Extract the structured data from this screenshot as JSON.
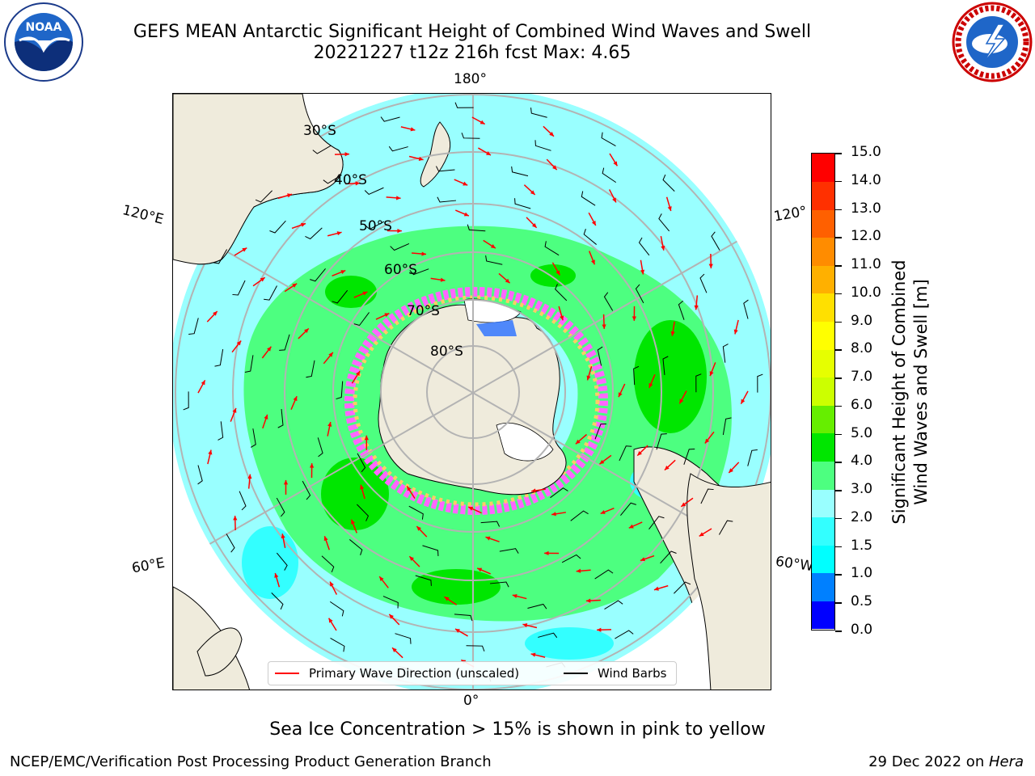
{
  "header": {
    "title_line1": "GEFS MEAN Antarctic Significant Height of Combined Wind Waves and Swell",
    "title_line2": "20221227 t12z 216h fcst   Max: 4.65"
  },
  "logos": {
    "left": "NOAA",
    "right": "NATIONAL WEATHER SERVICE"
  },
  "map": {
    "projection": "south-polar-stereographic",
    "longitude_labels": {
      "top": "180°",
      "left_upper": "120°E",
      "right_upper": "120°",
      "left_lower": "60°E",
      "right_lower": "60°W",
      "bottom": "0°"
    },
    "latitude_labels": [
      "30°S",
      "40°S",
      "50°S",
      "60°S",
      "70°S",
      "80°S"
    ],
    "colors": {
      "land": "#efebdc",
      "ocean_2_3": "#99ffff",
      "ocean_3_4": "#4dff80",
      "ocean_4_5": "#00e600",
      "ocean_1_5_2": "#33ffff",
      "sea_ice_low": "#ff66ff",
      "sea_ice_high": "#ffff66",
      "wave_arrow": "#ff0000",
      "wind_barb": "#000000",
      "gridline": "#b3b3b3"
    }
  },
  "legend": {
    "primary_wave_label": "Primary Wave Direction (unscaled)",
    "wind_barb_label": "Wind Barbs"
  },
  "colorbar": {
    "label_line1": "Significant Height of Combined",
    "label_line2": "Wind Waves and Swell [m]",
    "ticks": [
      "15.0",
      "14.0",
      "13.0",
      "12.0",
      "11.0",
      "10.0",
      "9.0",
      "8.0",
      "7.0",
      "6.0",
      "5.0",
      "4.0",
      "3.0",
      "2.0",
      "1.5",
      "1.0",
      "0.5",
      "0.0"
    ],
    "colors_bottom_to_top": [
      "#0000ff",
      "#0080ff",
      "#00ffff",
      "#33ffff",
      "#99ffff",
      "#4dff80",
      "#00e600",
      "#66ee00",
      "#ccff00",
      "#e6ff00",
      "#ffff00",
      "#ffe000",
      "#ffb000",
      "#ff8c00",
      "#ff6000",
      "#ff3000",
      "#ff0000"
    ]
  },
  "footnote": "Sea Ice Concentration > 15% is shown in pink to yellow",
  "credits": {
    "left": "NCEP/EMC/Verification Post Processing Product Generation Branch",
    "right_date": "29 Dec 2022 on ",
    "right_host": "Hera"
  }
}
